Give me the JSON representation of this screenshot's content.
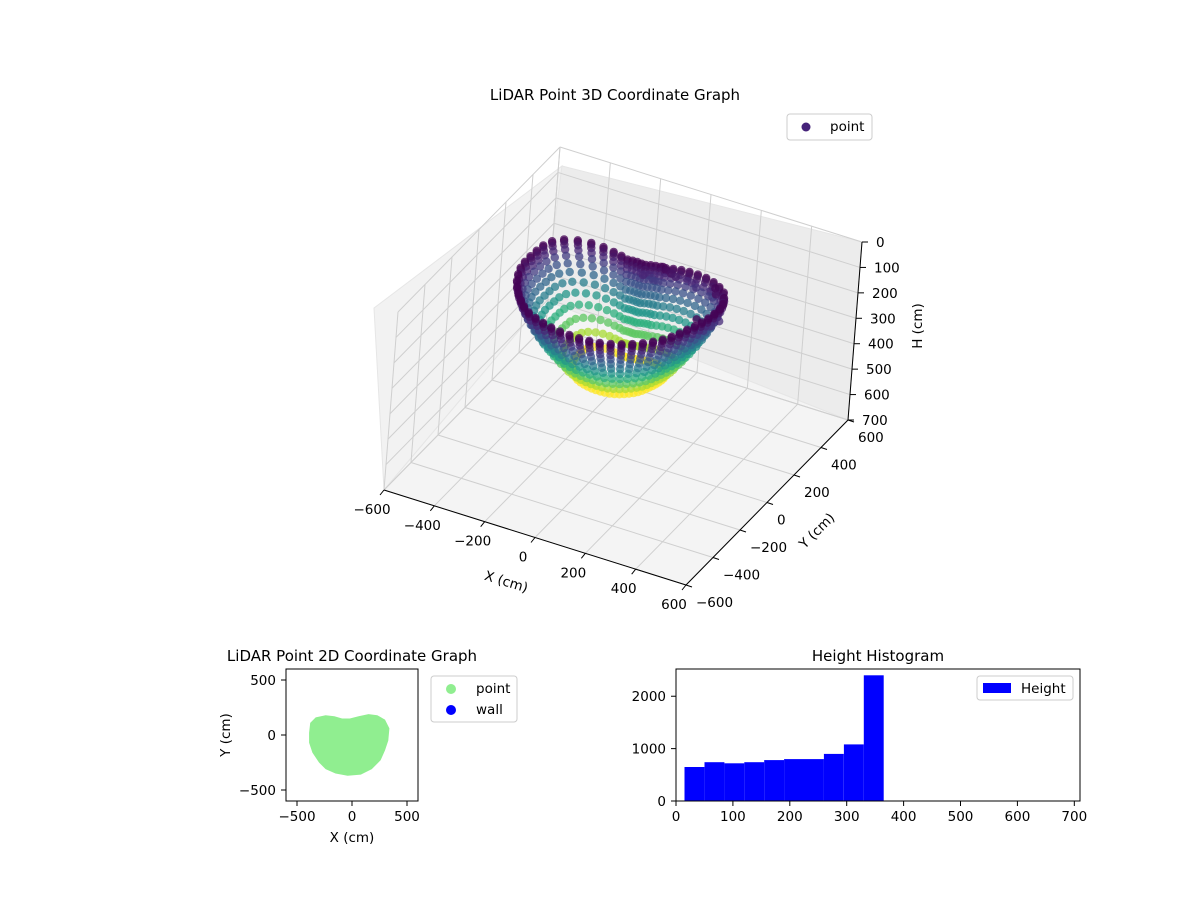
{
  "figure": {
    "background": "#ffffff"
  },
  "chart_data": [
    {
      "type": "scatter",
      "title": "LiDAR Point 3D Coordinate Graph",
      "xlabel": "X (cm)",
      "ylabel": "Y (cm)",
      "zlabel": "H (cm)",
      "xlim": [
        -600,
        600
      ],
      "ylim": [
        -600,
        600
      ],
      "zlim": [
        700,
        0
      ],
      "x_ticks": [
        "−600",
        "−400",
        "−200",
        "0",
        "200",
        "400",
        "600"
      ],
      "y_ticks": [
        "−600",
        "−400",
        "−200",
        "0",
        "200",
        "400",
        "600"
      ],
      "z_ticks": [
        "0",
        "100",
        "200",
        "300",
        "400",
        "500",
        "600",
        "700"
      ],
      "legend": {
        "placement": "top-right",
        "entries": [
          {
            "label": "point",
            "color": "#46237a"
          }
        ]
      },
      "colormap": "viridis",
      "grid": true,
      "description_shape": "bowl-shaped point cloud, rim near H≈30–100 cm, floor near H≈360 cm",
      "rim_height": 40,
      "floor_height": 360
    },
    {
      "type": "scatter",
      "title": "LiDAR Point 2D Coordinate Graph",
      "xlabel": "X (cm)",
      "ylabel": "Y (cm)",
      "xlim": [
        -600,
        600
      ],
      "ylim": [
        -600,
        600
      ],
      "x_ticks": [
        "−500",
        "0",
        "500"
      ],
      "y_ticks": [
        "−500",
        "0",
        "500"
      ],
      "legend": {
        "placement": "outside-right",
        "entries": [
          {
            "label": "point",
            "color": "#90ee90"
          },
          {
            "label": "wall",
            "color": "#0000ff"
          }
        ]
      },
      "series": [
        {
          "name": "point",
          "color": "#90ee90",
          "region_outline": [
            [
              -390,
              20
            ],
            [
              -380,
              110
            ],
            [
              -330,
              160
            ],
            [
              -240,
              180
            ],
            [
              -160,
              170
            ],
            [
              -90,
              150
            ],
            [
              -20,
              150
            ],
            [
              60,
              170
            ],
            [
              150,
              190
            ],
            [
              230,
              180
            ],
            [
              300,
              140
            ],
            [
              340,
              60
            ],
            [
              330,
              -50
            ],
            [
              300,
              -140
            ],
            [
              260,
              -230
            ],
            [
              180,
              -310
            ],
            [
              80,
              -360
            ],
            [
              -40,
              -370
            ],
            [
              -150,
              -350
            ],
            [
              -240,
              -310
            ],
            [
              -300,
              -250
            ],
            [
              -360,
              -160
            ],
            [
              -390,
              -70
            ]
          ]
        },
        {
          "name": "wall",
          "color": "#0000ff",
          "points": []
        }
      ]
    },
    {
      "type": "bar",
      "title": "Height Histogram",
      "xlabel": "",
      "ylabel": "",
      "xlim": [
        0,
        710
      ],
      "ylim": [
        0,
        2520
      ],
      "x_ticks": [
        "0",
        "100",
        "200",
        "300",
        "400",
        "500",
        "600",
        "700"
      ],
      "y_ticks": [
        "0",
        "1000",
        "2000"
      ],
      "legend": {
        "placement": "top-right",
        "entries": [
          {
            "label": "Height",
            "color": "#0000ff"
          }
        ]
      },
      "bin_width": 35,
      "bins": [
        {
          "x": 15,
          "value": 650
        },
        {
          "x": 50,
          "value": 740
        },
        {
          "x": 85,
          "value": 720
        },
        {
          "x": 120,
          "value": 740
        },
        {
          "x": 155,
          "value": 780
        },
        {
          "x": 190,
          "value": 800
        },
        {
          "x": 225,
          "value": 800
        },
        {
          "x": 260,
          "value": 900
        },
        {
          "x": 295,
          "value": 1080
        },
        {
          "x": 330,
          "value": 2400
        }
      ],
      "color": "#0000ff"
    }
  ]
}
